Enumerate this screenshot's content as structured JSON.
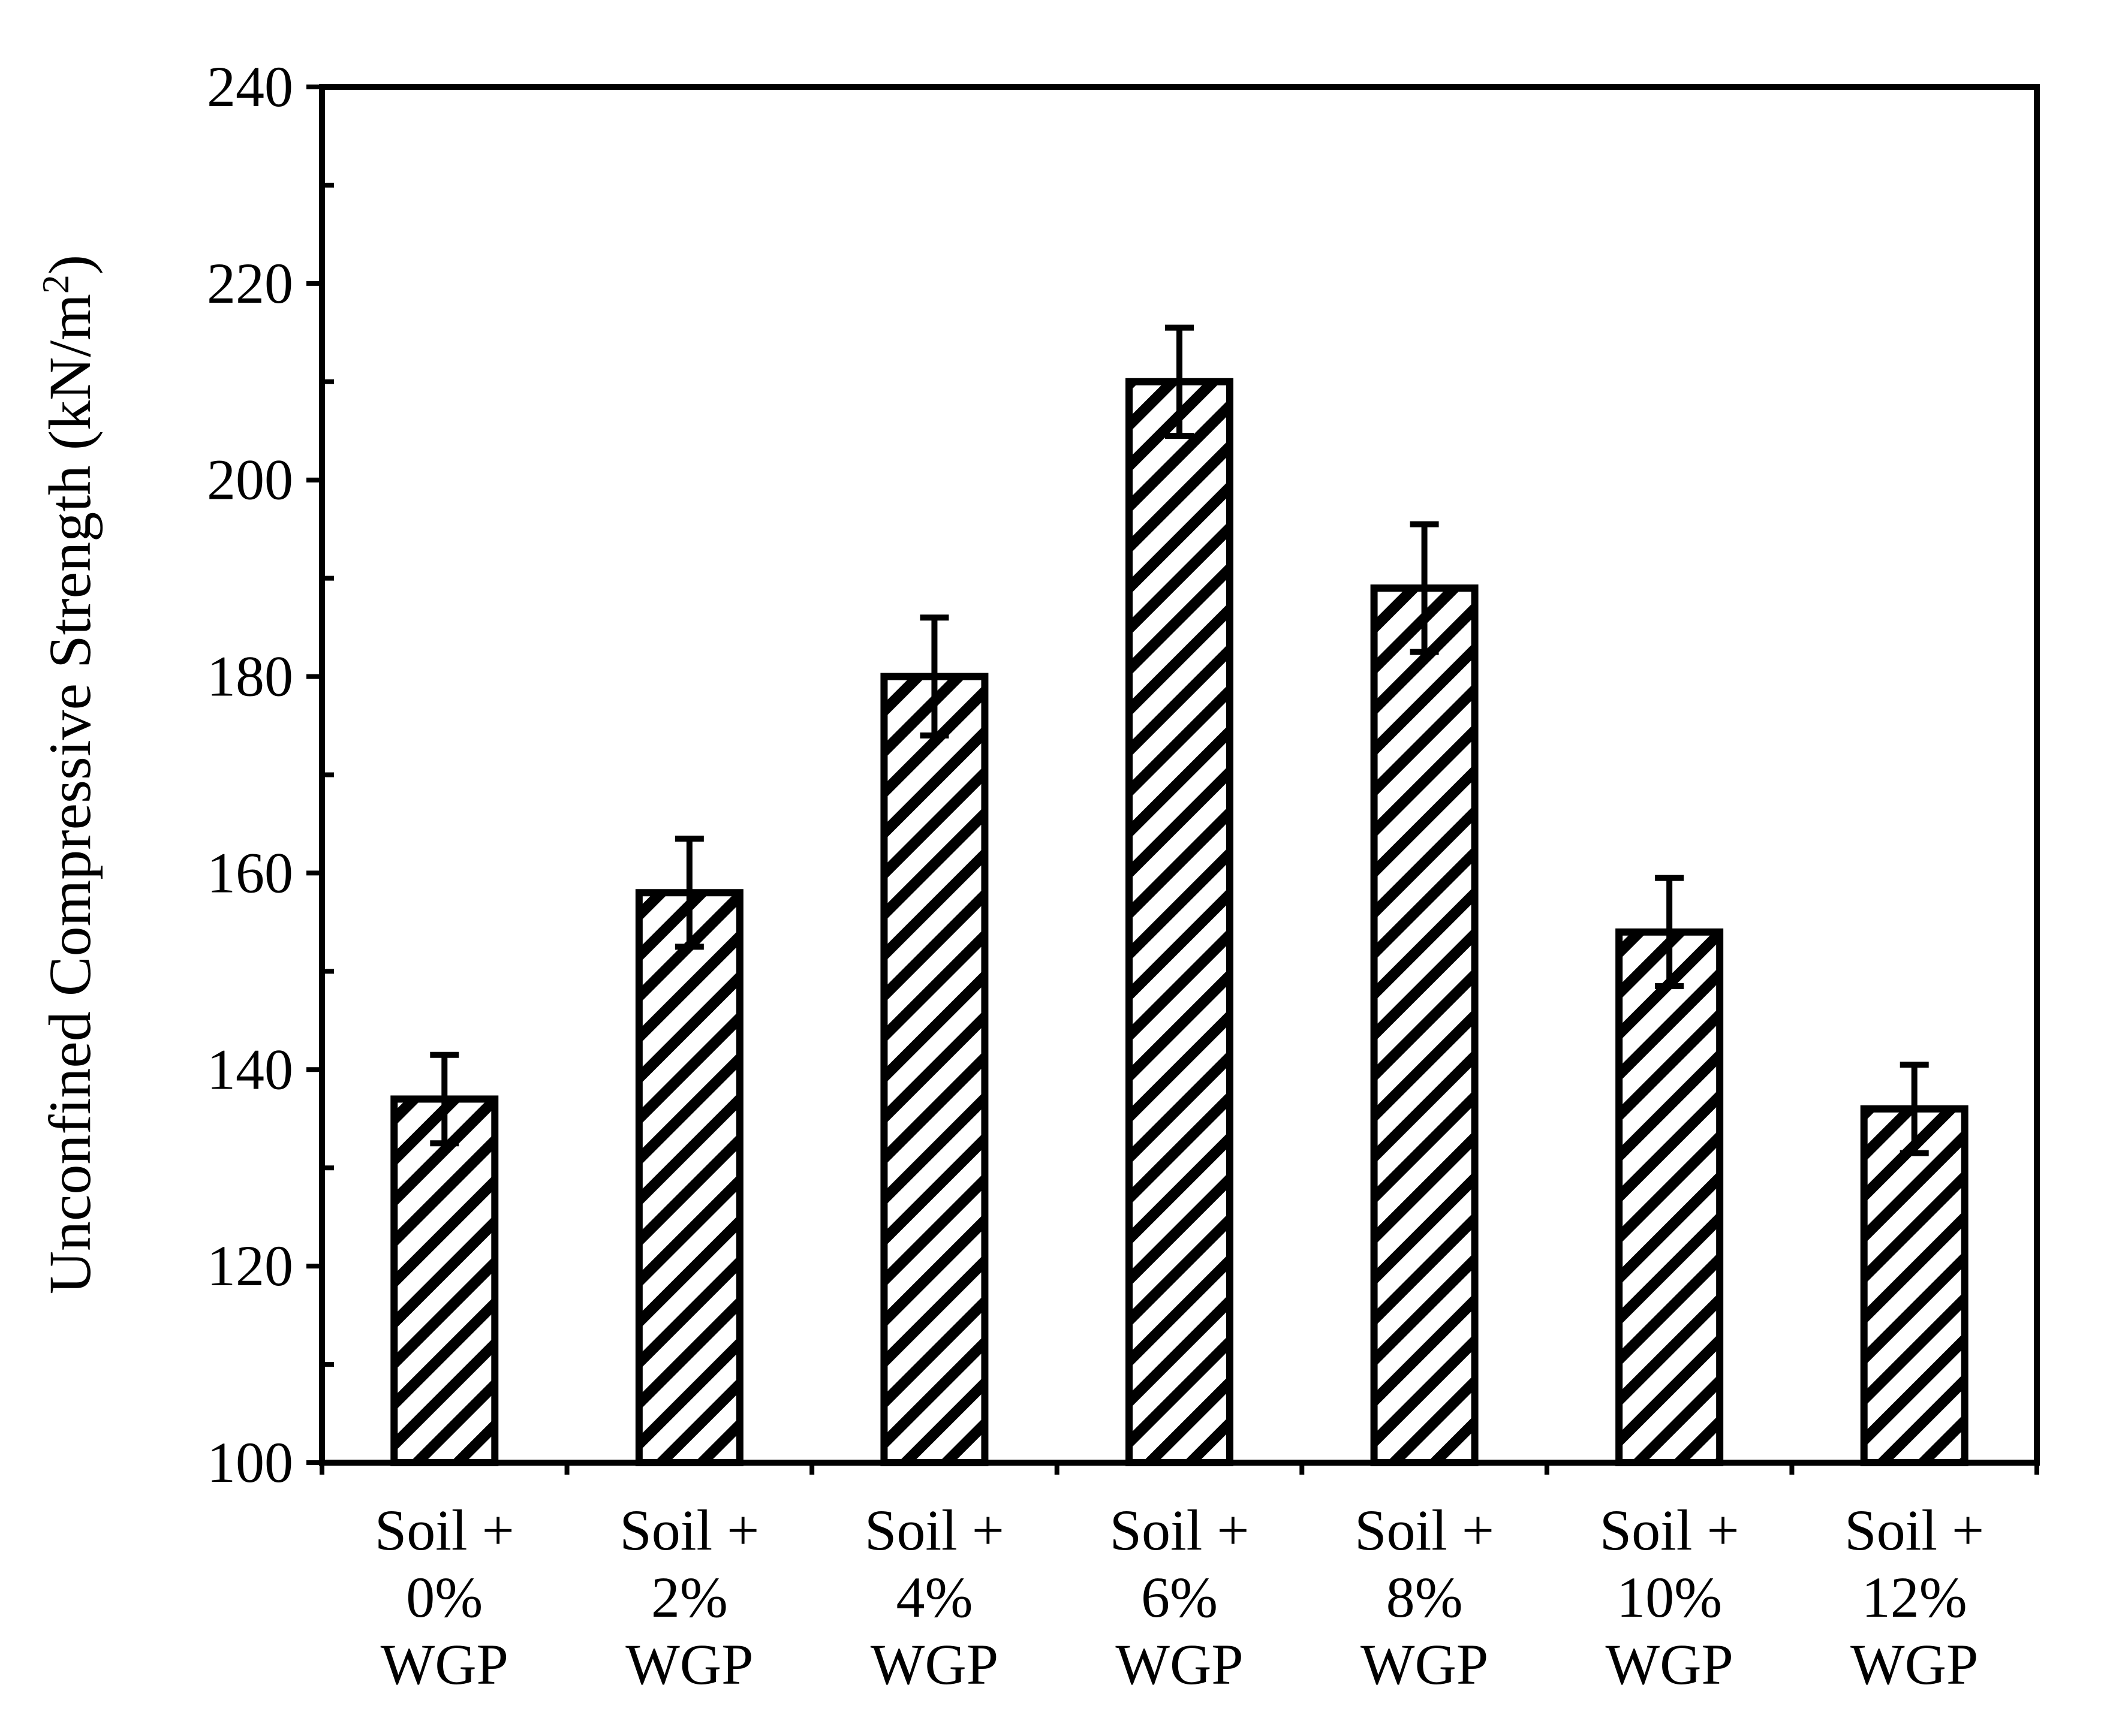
{
  "chart_data": {
    "type": "bar",
    "title": "",
    "ylabel": {
      "text": "Unconfined Compressive Strength (kN/m",
      "superscript": "2",
      "suffix": ")"
    },
    "xlabel": "",
    "ylim": [
      100,
      240
    ],
    "yticks": [
      100,
      120,
      140,
      160,
      180,
      200,
      220,
      240
    ],
    "categories": [
      [
        "Soil +",
        "0%",
        "WGP"
      ],
      [
        "Soil +",
        "2%",
        "WGP"
      ],
      [
        "Soil +",
        "4%",
        "WGP"
      ],
      [
        "Soil +",
        "6%",
        "WGP"
      ],
      [
        "Soil +",
        "8%",
        "WGP"
      ],
      [
        "Soil +",
        "10%",
        "WGP"
      ],
      [
        "Soil +",
        "12%",
        "WGP"
      ]
    ],
    "values": [
      137,
      158,
      180,
      210,
      189,
      154,
      136
    ],
    "error": [
      4.5,
      5.5,
      6,
      5.5,
      6.5,
      5.5,
      4.5
    ],
    "bar_fill": "diagonal-hatch",
    "bar_color": "#000000",
    "grid": false,
    "legend": "none"
  }
}
